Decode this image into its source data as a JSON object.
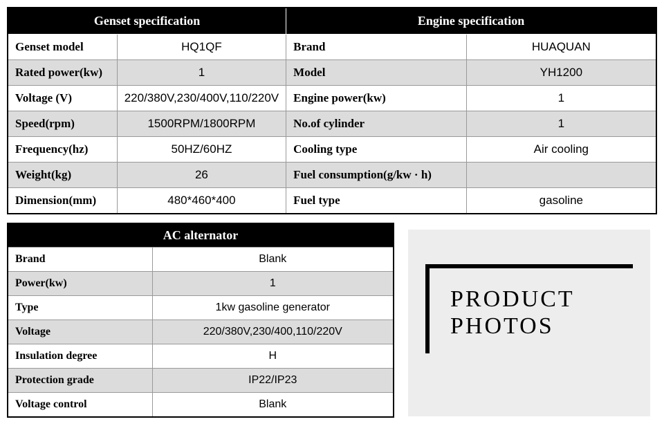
{
  "top": {
    "genset_header": "Genset specification",
    "engine_header": "Engine specification",
    "rows": [
      {
        "l1": "Genset model",
        "v1": "HQ1QF",
        "l2": "Brand",
        "v2": "HUAQUAN",
        "shade": false
      },
      {
        "l1": "Rated power(kw)",
        "v1": "1",
        "l2": "Model",
        "v2": "YH1200",
        "shade": true
      },
      {
        "l1": "Voltage (V)",
        "v1": "220/380V,230/400V,110/220V",
        "l2": "Engine power(kw)",
        "v2": "1",
        "shade": false
      },
      {
        "l1": "Speed(rpm)",
        "v1": "1500RPM/1800RPM",
        "l2": "No.of cylinder",
        "v2": "1",
        "shade": true
      },
      {
        "l1": "Frequency(hz)",
        "v1": "50HZ/60HZ",
        "l2": "Cooling type",
        "v2": "Air cooling",
        "shade": false
      },
      {
        "l1": "Weight(kg)",
        "v1": "26",
        "l2": "Fuel consumption(g/kw · h)",
        "v2": "",
        "shade": true
      },
      {
        "l1": "Dimension(mm)",
        "v1": "480*460*400",
        "l2": "Fuel type",
        "v2": "gasoline",
        "shade": false
      }
    ]
  },
  "ac": {
    "header": "AC alternator",
    "rows": [
      {
        "label": "Brand",
        "value": "Blank",
        "shade": false
      },
      {
        "label": "Power(kw)",
        "value": "1",
        "shade": true
      },
      {
        "label": "Type",
        "value": "1kw gasoline generator",
        "shade": false
      },
      {
        "label": "Voltage",
        "value": "220/380V,230/400,110/220V",
        "shade": true
      },
      {
        "label": "Insulation degree",
        "value": "H",
        "shade": false
      },
      {
        "label": "Protection grade",
        "value": "IP22/IP23",
        "shade": true
      },
      {
        "label": "Voltage control",
        "value": "Blank",
        "shade": false
      }
    ]
  },
  "photos": {
    "line1": "PRODUCT",
    "line2": "PHOTOS"
  },
  "colors": {
    "header_bg": "#000000",
    "header_fg": "#ffffff",
    "shade_bg": "#dcdcdc",
    "bg": "#ffffff",
    "border": "#999999",
    "photo_bg": "#ededed"
  }
}
